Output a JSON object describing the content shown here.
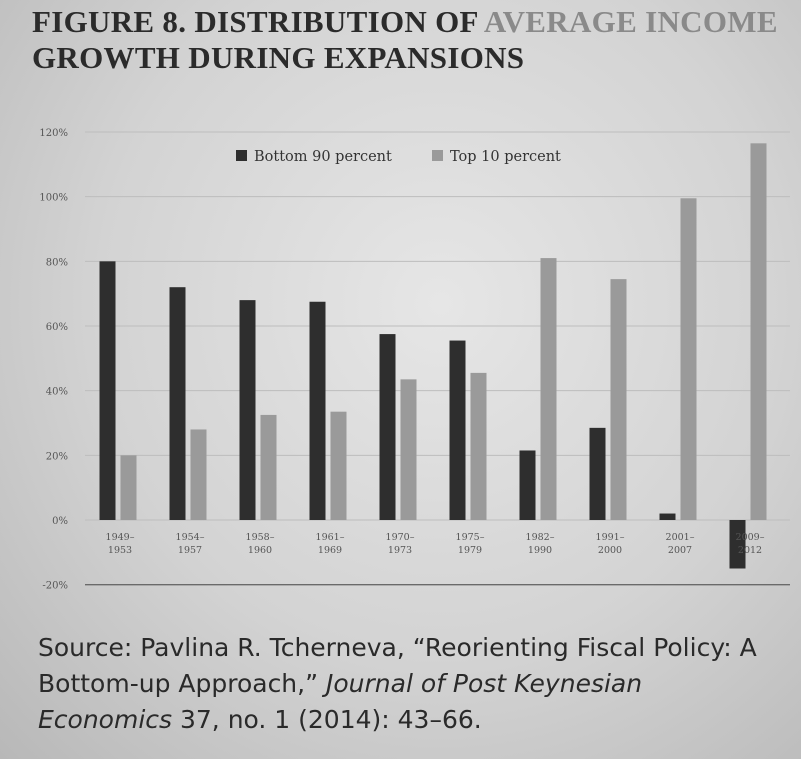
{
  "figure": {
    "label": "FIGURE 8.",
    "title_dark": " DISTRIBUTION OF",
    "title_fade": " AVERAGE INCOME",
    "title_line2": "GROWTH DURING EXPANSIONS"
  },
  "source": {
    "prefix": "Source: Pavlina R. Tcherneva, “Reorienting Fiscal Policy: A Bottom-up Approach,” ",
    "journal": "Journal of Post Keynesian Economics",
    "suffix": " 37, no. 1 (2014): 43–66."
  },
  "chart_data": {
    "type": "bar",
    "categories": [
      [
        "1949–",
        "1953"
      ],
      [
        "1954–",
        "1957"
      ],
      [
        "1958–",
        "1960"
      ],
      [
        "1961–",
        "1969"
      ],
      [
        "1970–",
        "1973"
      ],
      [
        "1975–",
        "1979"
      ],
      [
        "1982–",
        "1990"
      ],
      [
        "1991–",
        "2000"
      ],
      [
        "2001–",
        "2007"
      ],
      [
        "2009–",
        "2012"
      ]
    ],
    "series": [
      {
        "name": "Bottom 90 percent",
        "color": "#2e2e2e",
        "values": [
          80,
          72,
          68,
          67.5,
          57.5,
          55.5,
          21.5,
          28.5,
          2,
          -15
        ]
      },
      {
        "name": "Top 10 percent",
        "color": "#9a9a9a",
        "values": [
          20,
          28,
          32.5,
          33.5,
          43.5,
          45.5,
          81,
          74.5,
          99.5,
          116.5
        ]
      }
    ],
    "y_ticks": [
      120,
      100,
      80,
      60,
      40,
      20,
      0,
      -20
    ],
    "y_tick_labels": [
      "120%",
      "100%",
      "80%",
      "60%",
      "40%",
      "20%",
      "0%",
      "-20%"
    ],
    "ylim": [
      -20,
      120
    ],
    "grid": true,
    "legend_position": "top-center"
  }
}
